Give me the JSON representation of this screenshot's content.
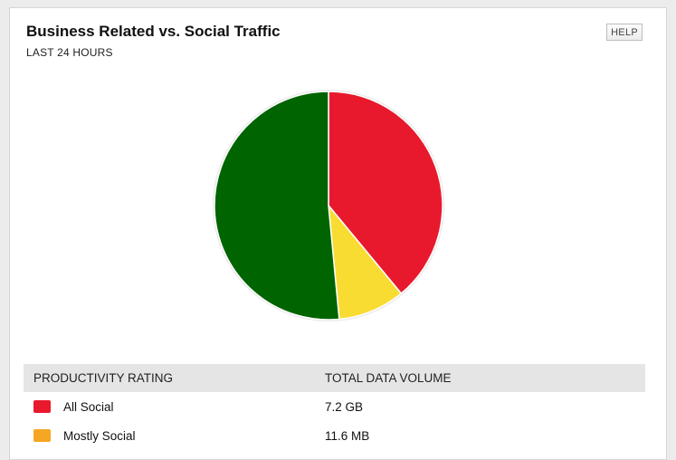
{
  "widget": {
    "title": "Business Related vs. Social Traffic",
    "subtitle": "LAST 24 HOURS",
    "help_label": "HELP"
  },
  "table": {
    "headers": [
      "PRODUCTIVITY RATING",
      "TOTAL DATA VOLUME"
    ],
    "rows": [
      {
        "label": "All Social",
        "value": "7.2 GB",
        "color": "#e8192c"
      },
      {
        "label": "Mostly Social",
        "value": "11.6 MB",
        "color": "#f5a623"
      }
    ]
  },
  "chart_data": {
    "type": "pie",
    "slices": [
      {
        "color": "#e8192c",
        "share": 0.39
      },
      {
        "color": "#f9dc32",
        "share": 0.095
      },
      {
        "color": "#006400",
        "share": 0.515
      }
    ],
    "start_angle_deg": 0
  }
}
